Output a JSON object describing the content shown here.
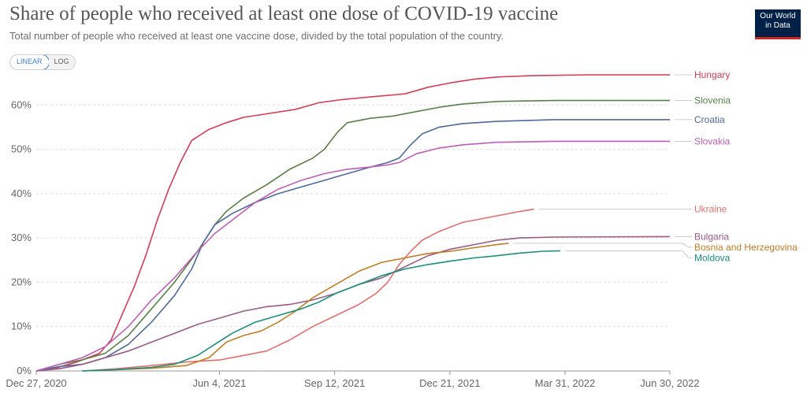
{
  "header": {
    "title": "Share of people who received at least one dose of COVID-19 vaccine",
    "subtitle": "Total number of people who received at least one vaccine dose, divided by the total population of the country.",
    "logo_line1": "Our World",
    "logo_line2": "in Data"
  },
  "controls": {
    "linear_label": "LINEAR",
    "log_label": "LOG",
    "selected": "LINEAR"
  },
  "chart_data": {
    "type": "line",
    "title": "Share of people who received at least one dose of COVID-19 vaccine",
    "xlabel": "",
    "ylabel": "",
    "x_unit": "days since Dec 27, 2020",
    "xlim": [
      0,
      550
    ],
    "ylim": [
      0,
      65
    ],
    "grid": true,
    "y_ticks": [
      {
        "value": 0,
        "label": "0%"
      },
      {
        "value": 10,
        "label": "10%"
      },
      {
        "value": 20,
        "label": "20%"
      },
      {
        "value": 30,
        "label": "30%"
      },
      {
        "value": 40,
        "label": "40%"
      },
      {
        "value": 50,
        "label": "50%"
      },
      {
        "value": 60,
        "label": "60%"
      }
    ],
    "x_ticks": [
      {
        "value": 0,
        "label": "Dec 27, 2020"
      },
      {
        "value": 159,
        "label": "Jun 4, 2021"
      },
      {
        "value": 259,
        "label": "Sep 12, 2021"
      },
      {
        "value": 359,
        "label": "Dec 21, 2021"
      },
      {
        "value": 459,
        "label": "Mar 31, 2022"
      },
      {
        "value": 550,
        "label": "Jun 30, 2022"
      }
    ],
    "series": [
      {
        "name": "Hungary",
        "color": "#d73c50",
        "points": [
          [
            0,
            0
          ],
          [
            15,
            0.5
          ],
          [
            35,
            2
          ],
          [
            55,
            4
          ],
          [
            65,
            7
          ],
          [
            75,
            13
          ],
          [
            85,
            19
          ],
          [
            95,
            26
          ],
          [
            105,
            34
          ],
          [
            115,
            41
          ],
          [
            125,
            47
          ],
          [
            135,
            52
          ],
          [
            150,
            54.5
          ],
          [
            165,
            56
          ],
          [
            180,
            57.2
          ],
          [
            200,
            58
          ],
          [
            225,
            59
          ],
          [
            245,
            60.5
          ],
          [
            265,
            61.2
          ],
          [
            290,
            61.8
          ],
          [
            320,
            62.5
          ],
          [
            340,
            64
          ],
          [
            360,
            65
          ],
          [
            380,
            65.8
          ],
          [
            400,
            66.3
          ],
          [
            430,
            66.6
          ],
          [
            480,
            66.8
          ],
          [
            550,
            66.8
          ]
        ]
      },
      {
        "name": "Slovenia",
        "color": "#578145",
        "points": [
          [
            0,
            0
          ],
          [
            20,
            1.5
          ],
          [
            40,
            2.5
          ],
          [
            60,
            4
          ],
          [
            80,
            8
          ],
          [
            100,
            14
          ],
          [
            120,
            20
          ],
          [
            140,
            27
          ],
          [
            155,
            33
          ],
          [
            165,
            36
          ],
          [
            180,
            39
          ],
          [
            200,
            42
          ],
          [
            220,
            45.5
          ],
          [
            240,
            48
          ],
          [
            250,
            50
          ],
          [
            256,
            52
          ],
          [
            262,
            54
          ],
          [
            270,
            56
          ],
          [
            290,
            57
          ],
          [
            310,
            57.5
          ],
          [
            330,
            58.5
          ],
          [
            350,
            59.5
          ],
          [
            370,
            60.2
          ],
          [
            400,
            60.8
          ],
          [
            450,
            61
          ],
          [
            550,
            61
          ]
        ]
      },
      {
        "name": "Croatia",
        "color": "#4c6a9c",
        "points": [
          [
            0,
            0
          ],
          [
            20,
            1
          ],
          [
            40,
            1.5
          ],
          [
            60,
            3
          ],
          [
            80,
            6
          ],
          [
            100,
            11
          ],
          [
            120,
            17
          ],
          [
            135,
            23
          ],
          [
            145,
            29
          ],
          [
            155,
            33
          ],
          [
            170,
            35.5
          ],
          [
            190,
            38
          ],
          [
            210,
            40
          ],
          [
            230,
            41.5
          ],
          [
            250,
            43
          ],
          [
            270,
            44.5
          ],
          [
            290,
            46
          ],
          [
            305,
            47
          ],
          [
            315,
            48
          ],
          [
            325,
            51
          ],
          [
            335,
            53.5
          ],
          [
            350,
            55
          ],
          [
            370,
            55.8
          ],
          [
            400,
            56.3
          ],
          [
            450,
            56.7
          ],
          [
            550,
            56.7
          ]
        ]
      },
      {
        "name": "Slovakia",
        "color": "#c15db6",
        "points": [
          [
            0,
            0
          ],
          [
            20,
            1.5
          ],
          [
            40,
            3
          ],
          [
            60,
            5.5
          ],
          [
            80,
            10
          ],
          [
            100,
            16
          ],
          [
            120,
            21
          ],
          [
            140,
            27
          ],
          [
            155,
            31
          ],
          [
            170,
            34
          ],
          [
            190,
            38
          ],
          [
            210,
            41
          ],
          [
            230,
            43
          ],
          [
            250,
            44.5
          ],
          [
            270,
            45.5
          ],
          [
            290,
            46
          ],
          [
            305,
            46.5
          ],
          [
            315,
            47
          ],
          [
            330,
            49
          ],
          [
            350,
            50.3
          ],
          [
            370,
            51
          ],
          [
            400,
            51.6
          ],
          [
            450,
            51.8
          ],
          [
            550,
            51.8
          ]
        ]
      },
      {
        "name": "Ukraine",
        "color": "#e56e6b",
        "points": [
          [
            40,
            0
          ],
          [
            70,
            0.5
          ],
          [
            100,
            1.2
          ],
          [
            130,
            2
          ],
          [
            160,
            2.5
          ],
          [
            180,
            3.5
          ],
          [
            200,
            4.5
          ],
          [
            220,
            7
          ],
          [
            240,
            10
          ],
          [
            260,
            12.5
          ],
          [
            280,
            15
          ],
          [
            295,
            17.5
          ],
          [
            305,
            20
          ],
          [
            315,
            24
          ],
          [
            325,
            27
          ],
          [
            335,
            29.5
          ],
          [
            350,
            31.5
          ],
          [
            370,
            33.5
          ],
          [
            400,
            35
          ],
          [
            420,
            36
          ],
          [
            432,
            36.5
          ]
        ]
      },
      {
        "name": "Bulgaria",
        "color": "#9a5b86",
        "points": [
          [
            0,
            0
          ],
          [
            20,
            0.5
          ],
          [
            40,
            1.5
          ],
          [
            60,
            3
          ],
          [
            80,
            4.5
          ],
          [
            100,
            6.5
          ],
          [
            120,
            8.5
          ],
          [
            140,
            10.5
          ],
          [
            160,
            12
          ],
          [
            180,
            13.5
          ],
          [
            200,
            14.5
          ],
          [
            220,
            15
          ],
          [
            240,
            16
          ],
          [
            260,
            17.5
          ],
          [
            280,
            19.5
          ],
          [
            300,
            21
          ],
          [
            320,
            23.5
          ],
          [
            340,
            26
          ],
          [
            360,
            27.5
          ],
          [
            380,
            28.5
          ],
          [
            400,
            29.5
          ],
          [
            420,
            30
          ],
          [
            450,
            30.2
          ],
          [
            550,
            30.3
          ]
        ]
      },
      {
        "name": "Bosnia and Herzegovina",
        "color": "#c47c22",
        "points": [
          [
            40,
            0
          ],
          [
            70,
            0.3
          ],
          [
            100,
            0.6
          ],
          [
            130,
            1.2
          ],
          [
            150,
            3
          ],
          [
            165,
            6.5
          ],
          [
            180,
            8
          ],
          [
            195,
            9
          ],
          [
            210,
            11
          ],
          [
            225,
            13.5
          ],
          [
            240,
            16.5
          ],
          [
            260,
            19.5
          ],
          [
            280,
            22.5
          ],
          [
            300,
            24.5
          ],
          [
            320,
            25.5
          ],
          [
            340,
            26.5
          ],
          [
            360,
            27
          ],
          [
            380,
            27.8
          ],
          [
            400,
            28.5
          ],
          [
            410,
            28.8
          ]
        ]
      },
      {
        "name": "Moldova",
        "color": "#18917a",
        "points": [
          [
            40,
            0
          ],
          [
            70,
            0.3
          ],
          [
            100,
            0.8
          ],
          [
            120,
            1.5
          ],
          [
            140,
            3.5
          ],
          [
            155,
            6
          ],
          [
            170,
            8.5
          ],
          [
            190,
            11
          ],
          [
            210,
            12.5
          ],
          [
            230,
            14
          ],
          [
            245,
            15.5
          ],
          [
            260,
            17.5
          ],
          [
            280,
            19.5
          ],
          [
            300,
            21.5
          ],
          [
            320,
            23
          ],
          [
            340,
            24
          ],
          [
            360,
            24.8
          ],
          [
            380,
            25.5
          ],
          [
            400,
            26
          ],
          [
            420,
            26.6
          ],
          [
            440,
            27
          ],
          [
            455,
            27.1
          ]
        ]
      }
    ]
  }
}
